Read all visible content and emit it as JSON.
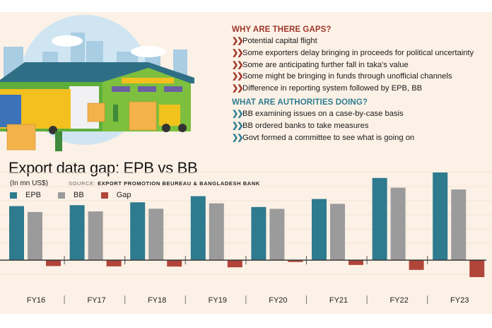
{
  "infobox": {
    "why_heading": "WHY ARE THERE GAPS?",
    "why_items": [
      "Potential capital flight",
      "Some exporters delay bringing in proceeds for political uncertainty",
      "Some are anticipating further fall in taka's value",
      "Some might be bringing in funds through unofficial channels",
      "Difference in reporting system followed by EPB, BB"
    ],
    "what_heading": "WHAT ARE AUTHORITIES DOING?",
    "what_items": [
      "BB examining issues on a case-by-case basis",
      "BB ordered banks to take measures",
      "Govt formed a committee to see what is going on"
    ],
    "bullet_icon": "double-chevron-right-icon"
  },
  "illustration": {
    "description": "warehouse-with-truck-forklift-workers-illustration"
  },
  "colors": {
    "epb": "#2e7a8f",
    "bb": "#9b9b9b",
    "gap": "#b1453a",
    "why_heading": "#a0372b",
    "what_heading": "#2f7d91",
    "background": "#fcf1e6"
  },
  "chart_data": {
    "type": "bar",
    "title": "Export data gap: EPB vs BB",
    "unit_label": "(In mn US$)",
    "source_label": "SOURCE:",
    "source_text": "EXPORT PROMOTION BEUREAU & BANGLADESH BANK",
    "xlabel": "",
    "ylabel": "In mn US$",
    "categories": [
      "FY16",
      "FY17",
      "FY18",
      "FY19",
      "FY20",
      "FY21",
      "FY22",
      "FY23"
    ],
    "series": [
      {
        "name": "EPB",
        "values": [
          34260,
          34850,
          36670,
          40540,
          33670,
          38760,
          52080,
          55560
        ]
      },
      {
        "name": "BB",
        "values": [
          30500,
          30900,
          32600,
          36000,
          32500,
          35700,
          45900,
          44800
        ]
      },
      {
        "name": "Gap",
        "values": [
          -3760,
          -3950,
          -4070,
          -4540,
          -1170,
          -3060,
          -6180,
          -10760
        ]
      }
    ],
    "ylim": [
      -12000,
      58000
    ],
    "grid": true,
    "legend": "top-left",
    "tick_labels_shown": false
  }
}
